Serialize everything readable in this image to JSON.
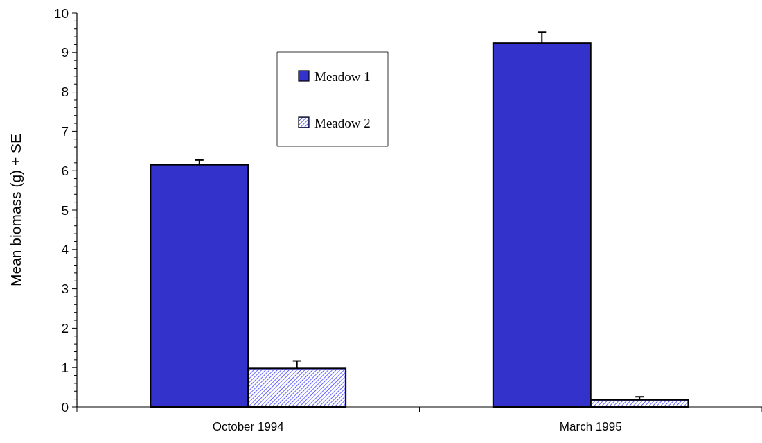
{
  "chart_data": {
    "type": "bar",
    "ylabel": "Mean biomass (g) + SE",
    "categories": [
      "October 1994",
      "March 1995"
    ],
    "series": [
      {
        "name": "Meadow 1",
        "color": "#3333cc",
        "values": [
          6.15,
          9.24
        ],
        "errors": [
          [
            6.15,
            6.27
          ],
          [
            9.24,
            9.52
          ]
        ]
      },
      {
        "name": "Meadow 2",
        "color": "#6666ff",
        "values": [
          0.98,
          0.18
        ],
        "errors": [
          [
            0.98,
            1.17
          ],
          [
            0.18,
            0.26
          ]
        ]
      }
    ],
    "ylim": [
      0,
      10
    ],
    "yticks": [
      0,
      {
        "value": 0.2,
        "label": null
      },
      {
        "value": 0.4,
        "label": null
      },
      {
        "value": 0.6,
        "label": null
      },
      {
        "value": 0.8,
        "label": null
      },
      1,
      {
        "value": 1.2,
        "label": null
      },
      {
        "value": 1.4,
        "label": null
      },
      {
        "value": 1.6,
        "label": null
      },
      {
        "value": 1.8,
        "label": null
      },
      2,
      {
        "value": 2.2,
        "label": null
      },
      {
        "value": 2.4,
        "label": null
      },
      {
        "value": 2.6,
        "label": null
      },
      {
        "value": 2.8,
        "label": null
      },
      3,
      {
        "value": 3.2,
        "label": null
      },
      {
        "value": 3.4,
        "label": null
      },
      {
        "value": 3.6,
        "label": null
      },
      {
        "value": 3.8,
        "label": null
      },
      4,
      {
        "value": 4.2,
        "label": null
      },
      {
        "value": 4.4,
        "label": null
      },
      {
        "value": 4.6,
        "label": null
      },
      {
        "value": 4.8,
        "label": null
      },
      5,
      {
        "value": 5.2,
        "label": null
      },
      {
        "value": 5.4,
        "label": null
      },
      {
        "value": 5.6,
        "label": null
      },
      {
        "value": 5.8,
        "label": null
      },
      6,
      {
        "value": 6.2,
        "label": null
      },
      {
        "value": 6.4,
        "label": null
      },
      {
        "value": 6.6,
        "label": null
      },
      {
        "value": 6.8,
        "label": null
      },
      7,
      {
        "value": 7.2,
        "label": null
      },
      {
        "value": 7.4,
        "label": null
      },
      {
        "value": 7.6,
        "label": null
      },
      {
        "value": 7.8,
        "label": null
      },
      8,
      {
        "value": 8.2,
        "label": null
      },
      {
        "value": 8.4,
        "label": null
      },
      {
        "value": 8.6,
        "label": null
      },
      {
        "value": 8.8,
        "label": null
      },
      9,
      {
        "value": 9.2,
        "label": null
      },
      {
        "value": 9.4,
        "label": null
      },
      {
        "value": 9.6,
        "label": null
      },
      {
        "value": 9.8,
        "label": null
      },
      10
    ],
    "legend": "top left",
    "grid": false
  }
}
